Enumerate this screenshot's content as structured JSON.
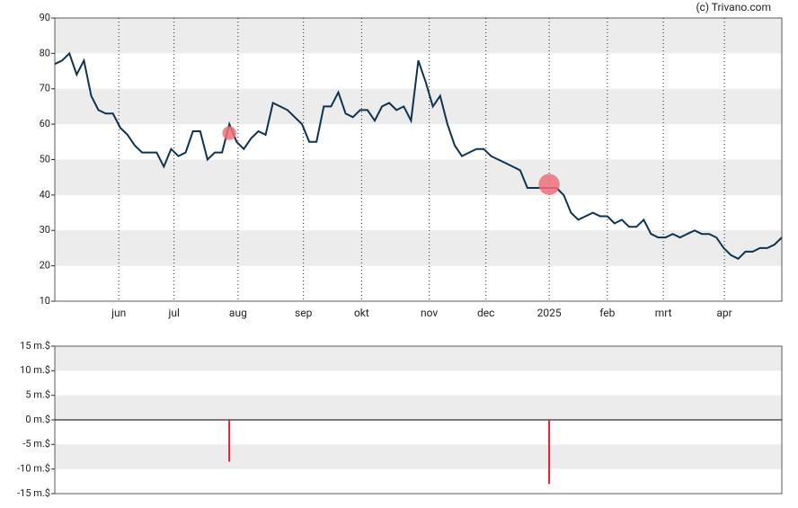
{
  "credit": "(c) Trivano.com",
  "chart_data": [
    {
      "type": "line",
      "color": "#0d3350",
      "marker_color": "#f0707a",
      "xlim": [
        0,
        100
      ],
      "xticks": [
        {
          "value": 8.8,
          "label": "jun"
        },
        {
          "value": 16.4,
          "label": "jul"
        },
        {
          "value": 25.2,
          "label": "aug"
        },
        {
          "value": 34.2,
          "label": "sep"
        },
        {
          "value": 42.2,
          "label": "okt"
        },
        {
          "value": 51.5,
          "label": "nov"
        },
        {
          "value": 59.3,
          "label": "dec"
        },
        {
          "value": 68,
          "label": "2025"
        },
        {
          "value": 76,
          "label": "feb"
        },
        {
          "value": 83.7,
          "label": "mrt"
        },
        {
          "value": 92.1,
          "label": "apr"
        }
      ],
      "ylim": [
        10,
        90
      ],
      "yticks": [
        10,
        20,
        30,
        40,
        50,
        60,
        70,
        80,
        90
      ],
      "values": [
        77,
        78,
        80,
        74,
        78,
        68,
        64,
        63,
        63,
        59,
        57,
        54,
        52,
        52,
        52,
        48,
        53,
        51,
        52,
        58,
        58,
        50,
        52,
        52,
        60,
        55,
        53,
        56,
        58,
        57,
        66,
        65,
        64,
        62,
        60,
        55,
        55,
        65,
        65,
        69,
        63,
        62,
        64,
        64,
        61,
        65,
        66,
        64,
        65,
        61,
        78,
        72,
        65,
        68,
        60,
        54,
        51,
        52,
        53,
        53,
        51,
        50,
        49,
        48,
        47,
        42,
        42,
        42,
        42,
        42,
        40,
        35,
        33,
        34,
        35,
        34,
        34,
        32,
        33,
        31,
        31,
        33,
        29,
        28,
        28,
        29,
        28,
        29,
        30,
        29,
        29,
        28,
        25,
        23,
        22,
        24,
        24,
        25,
        25,
        26,
        28
      ],
      "markers": {
        "x": [
          24,
          68
        ],
        "values": [
          57.5,
          43
        ]
      }
    },
    {
      "type": "bar",
      "color": "#d9202e",
      "xlim": [
        0,
        100
      ],
      "ylim": [
        -15,
        15
      ],
      "yticks": [
        {
          "value": 15,
          "label": "15 m.$"
        },
        {
          "value": 10,
          "label": "10 m.$"
        },
        {
          "value": 5,
          "label": "5 m.$"
        },
        {
          "value": 0,
          "label": "0 m.$"
        },
        {
          "value": -5,
          "label": "-5 m.$"
        },
        {
          "value": -10,
          "label": "-10 m.$"
        },
        {
          "value": -15,
          "label": "-15 m.$"
        }
      ],
      "x": [
        24,
        68
      ],
      "values": [
        -8.5,
        -13
      ]
    }
  ]
}
